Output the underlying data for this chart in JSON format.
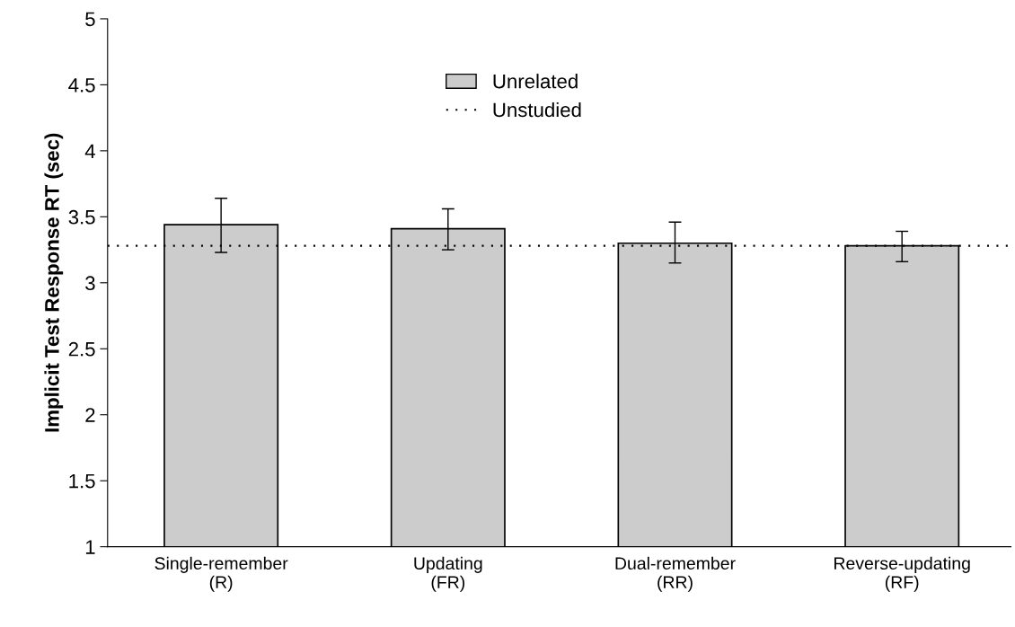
{
  "chart_data": {
    "type": "bar",
    "ylabel": "Implicit Test Response RT (sec)",
    "categories": [
      "Single-remember\n(R)",
      "Updating\n(FR)",
      "Dual-remember\n(RR)",
      "Reverse-updating\n(RF)"
    ],
    "series": [
      {
        "name": "Unrelated",
        "color": "#cccccc",
        "values": [
          3.44,
          3.41,
          3.3,
          3.28
        ],
        "errors": [
          [
            3.23,
            3.64
          ],
          [
            3.25,
            3.56
          ],
          [
            3.15,
            3.46
          ],
          [
            3.16,
            3.39
          ]
        ]
      }
    ],
    "ref_lines": [
      {
        "axis": "y",
        "value": 3.28,
        "label": "Unstudied",
        "line_style": "dotted",
        "color": "#000000"
      }
    ],
    "ylim": [
      1,
      5
    ],
    "yticks": [
      1,
      1.5,
      2,
      2.5,
      3,
      3.5,
      4,
      4.5,
      5
    ],
    "grid": false,
    "legend": "top"
  }
}
